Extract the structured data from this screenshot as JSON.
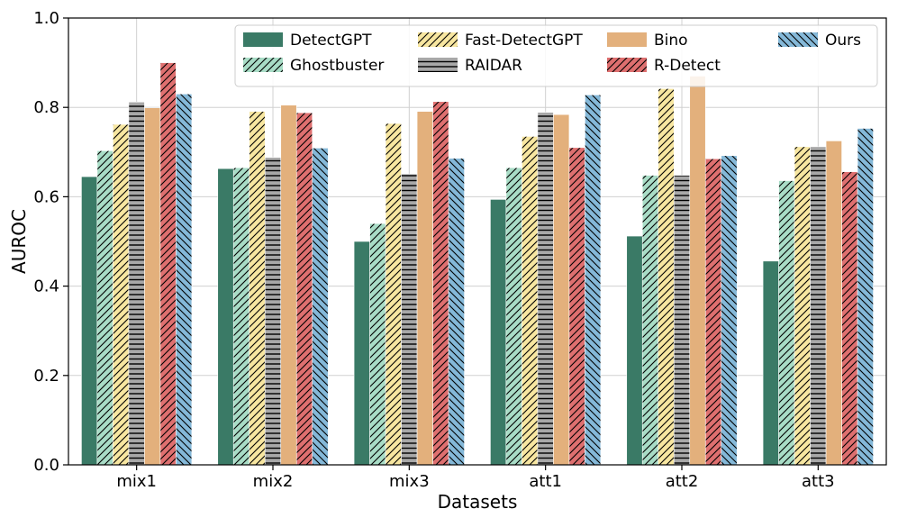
{
  "chart_data": {
    "type": "bar",
    "title": "",
    "xlabel": "Datasets",
    "ylabel": "AUROC",
    "ylim": [
      0,
      1.0
    ],
    "yticks": [
      "0.0",
      "0.2",
      "0.4",
      "0.6",
      "0.8",
      "1.0"
    ],
    "grid": true,
    "legend_position": "top-right",
    "categories": [
      "mix1",
      "mix2",
      "mix3",
      "att1",
      "att2",
      "att3"
    ],
    "series": [
      {
        "name": "DetectGPT",
        "color": "#3a7a66",
        "hatch": "none",
        "values": [
          0.645,
          0.663,
          0.5,
          0.594,
          0.512,
          0.456
        ]
      },
      {
        "name": "Ghostbuster",
        "color": "#a8dcc6",
        "hatch": "diag-fwd",
        "values": [
          0.703,
          0.665,
          0.54,
          0.665,
          0.648,
          0.636
        ]
      },
      {
        "name": "Fast-DetectGPT",
        "color": "#f7e6a0",
        "hatch": "diag-fwd",
        "values": [
          0.762,
          0.791,
          0.764,
          0.735,
          0.842,
          0.712
        ]
      },
      {
        "name": "RAIDAR",
        "color": "#a8a8a8",
        "hatch": "horizontal",
        "values": [
          0.812,
          0.688,
          0.651,
          0.789,
          0.648,
          0.712
        ]
      },
      {
        "name": "Bino",
        "color": "#e3b07c",
        "hatch": "none",
        "values": [
          0.799,
          0.805,
          0.791,
          0.784,
          0.87,
          0.725
        ]
      },
      {
        "name": "R-Detect",
        "color": "#de6f6f",
        "hatch": "diag-fwd",
        "values": [
          0.9,
          0.788,
          0.813,
          0.71,
          0.685,
          0.656
        ]
      },
      {
        "name": "Ours",
        "color": "#84b8d8",
        "hatch": "diag-back",
        "values": [
          0.83,
          0.709,
          0.686,
          0.828,
          0.692,
          0.753
        ]
      }
    ]
  }
}
